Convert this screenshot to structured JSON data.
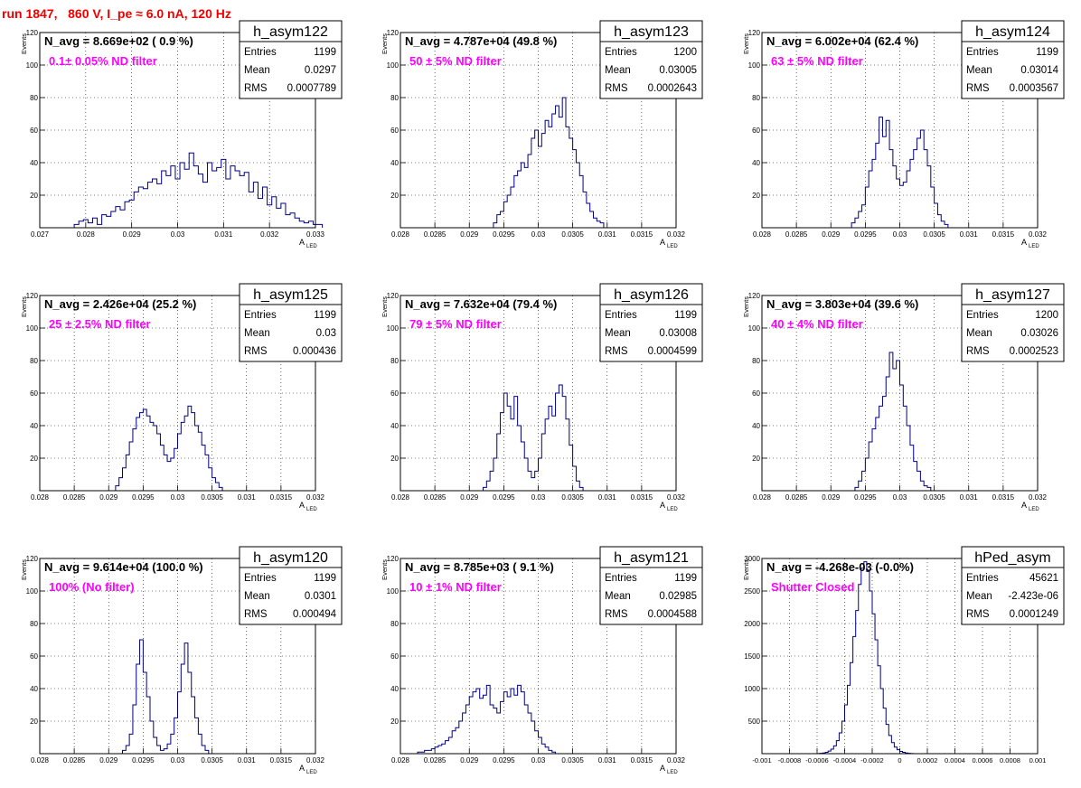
{
  "run_title": "run 1847,   860 V, I_pe ≈ 6.0 nA, 120 Hz",
  "chart_data": [
    {
      "type": "histogram",
      "name": "h_asym122",
      "ylabel": "Events",
      "xlabel_main": "A",
      "xlabel_sub": "LED",
      "xlim": [
        0.027,
        0.033
      ],
      "ylim": [
        0,
        120
      ],
      "xticks": [
        0.027,
        0.028,
        0.029,
        0.03,
        0.031,
        0.032,
        0.033
      ],
      "xtick_labels": [
        "0.027",
        "0.028",
        "0.029",
        "0.03",
        "0.031",
        "0.032",
        "0.033"
      ],
      "yticks": [
        0,
        20,
        40,
        60,
        80,
        100,
        120
      ],
      "ytick_labels": [
        "",
        "20",
        "40",
        "60",
        "80",
        "100",
        "120"
      ],
      "navg_text": "N_avg = 8.669e+02 ( 0.9 %)",
      "filter_text": "0.1± 0.05% ND filter",
      "stats": {
        "entries": "1199",
        "mean": "0.0297",
        "rms": "0.0007789"
      },
      "bin_start": 0.02775,
      "bin_width": 0.0001,
      "counts": [
        2,
        4,
        5,
        3,
        6,
        2,
        8,
        7,
        10,
        13,
        11,
        16,
        17,
        22,
        25,
        24,
        28,
        30,
        27,
        35,
        32,
        38,
        30,
        40,
        36,
        46,
        38,
        33,
        28,
        40,
        35,
        37,
        42,
        30,
        38,
        35,
        32,
        34,
        22,
        28,
        18,
        25,
        14,
        19,
        12,
        15,
        8,
        9,
        6,
        4,
        3,
        4,
        2,
        2
      ]
    },
    {
      "type": "histogram",
      "name": "h_asym123",
      "ylabel": "Events",
      "xlabel_main": "A",
      "xlabel_sub": "LED",
      "xlim": [
        0.028,
        0.032
      ],
      "ylim": [
        0,
        120
      ],
      "xticks": [
        0.028,
        0.0285,
        0.029,
        0.0295,
        0.03,
        0.0305,
        0.031,
        0.0315,
        0.032
      ],
      "xtick_labels": [
        "0.028",
        "0.0285",
        "0.029",
        "0.0295",
        "0.03",
        "0.0305",
        "0.031",
        "0.0315",
        "0.032"
      ],
      "yticks": [
        0,
        20,
        40,
        60,
        80,
        100,
        120
      ],
      "ytick_labels": [
        "",
        "20",
        "40",
        "60",
        "80",
        "100",
        "120"
      ],
      "navg_text": "N_avg = 4.787e+04 (49.8 %)",
      "filter_text": "50 ± 5% ND filter",
      "stats": {
        "entries": "1200",
        "mean": "0.03005",
        "rms": "0.0002643"
      },
      "bin_start": 0.02935,
      "bin_width": 5e-05,
      "counts": [
        3,
        8,
        10,
        16,
        20,
        25,
        32,
        35,
        40,
        37,
        45,
        55,
        60,
        50,
        58,
        66,
        62,
        70,
        75,
        68,
        80,
        62,
        55,
        48,
        40,
        32,
        22,
        15,
        10,
        6,
        4,
        3
      ]
    },
    {
      "type": "histogram",
      "name": "h_asym124",
      "ylabel": "Events",
      "xlabel_main": "A",
      "xlabel_sub": "LED",
      "xlim": [
        0.028,
        0.032
      ],
      "ylim": [
        0,
        120
      ],
      "xticks": [
        0.028,
        0.0285,
        0.029,
        0.0295,
        0.03,
        0.0305,
        0.031,
        0.0315,
        0.032
      ],
      "xtick_labels": [
        "0.028",
        "0.0285",
        "0.029",
        "0.0295",
        "0.03",
        "0.0305",
        "0.031",
        "0.0315",
        "0.032"
      ],
      "yticks": [
        0,
        20,
        40,
        60,
        80,
        100,
        120
      ],
      "ytick_labels": [
        "",
        "20",
        "40",
        "60",
        "80",
        "100",
        "120"
      ],
      "navg_text": "N_avg = 6.002e+04 (62.4 %)",
      "filter_text": "63 ± 5% ND filter",
      "stats": {
        "entries": "1199",
        "mean": "0.03014",
        "rms": "0.0003567"
      },
      "bin_start": 0.0293,
      "bin_width": 5e-05,
      "counts": [
        3,
        6,
        10,
        14,
        25,
        35,
        42,
        52,
        68,
        56,
        66,
        48,
        38,
        30,
        26,
        28,
        35,
        42,
        48,
        55,
        60,
        48,
        38,
        25,
        15,
        8,
        4,
        2
      ]
    },
    {
      "type": "histogram",
      "name": "h_asym125",
      "ylabel": "Events",
      "xlabel_main": "A",
      "xlabel_sub": "LED",
      "xlim": [
        0.028,
        0.032
      ],
      "ylim": [
        0,
        120
      ],
      "xticks": [
        0.028,
        0.0285,
        0.029,
        0.0295,
        0.03,
        0.0305,
        0.031,
        0.0315,
        0.032
      ],
      "xtick_labels": [
        "0.028",
        "0.0285",
        "0.029",
        "0.0295",
        "0.03",
        "0.0305",
        "0.031",
        "0.0315",
        "0.032"
      ],
      "yticks": [
        0,
        20,
        40,
        60,
        80,
        100,
        120
      ],
      "ytick_labels": [
        "",
        "20",
        "40",
        "60",
        "80",
        "100",
        "120"
      ],
      "navg_text": "N_avg = 2.426e+04 (25.2 %)",
      "filter_text": "25 ± 2.5% ND filter",
      "stats": {
        "entries": "1199",
        "mean": "0.03",
        "rms": "0.000436"
      },
      "bin_start": 0.0291,
      "bin_width": 5e-05,
      "counts": [
        3,
        8,
        14,
        22,
        30,
        38,
        45,
        48,
        50,
        46,
        42,
        40,
        35,
        28,
        22,
        18,
        20,
        26,
        35,
        42,
        46,
        52,
        48,
        40,
        36,
        28,
        22,
        14,
        8,
        5,
        2
      ]
    },
    {
      "type": "histogram",
      "name": "h_asym126",
      "ylabel": "Events",
      "xlabel_main": "A",
      "xlabel_sub": "LED",
      "xlim": [
        0.028,
        0.032
      ],
      "ylim": [
        0,
        120
      ],
      "xticks": [
        0.028,
        0.0285,
        0.029,
        0.0295,
        0.03,
        0.0305,
        0.031,
        0.0315,
        0.032
      ],
      "xtick_labels": [
        "0.028",
        "0.0285",
        "0.029",
        "0.0295",
        "0.03",
        "0.0305",
        "0.031",
        "0.0315",
        "0.032"
      ],
      "yticks": [
        0,
        20,
        40,
        60,
        80,
        100,
        120
      ],
      "ytick_labels": [
        "",
        "20",
        "40",
        "60",
        "80",
        "100",
        "120"
      ],
      "navg_text": "N_avg = 7.632e+04 (79.4 %)",
      "filter_text": "79 ± 5% ND filter",
      "stats": {
        "entries": "1199",
        "mean": "0.03008",
        "rms": "0.0004599"
      },
      "bin_start": 0.0292,
      "bin_width": 5e-05,
      "counts": [
        2,
        6,
        12,
        20,
        35,
        48,
        60,
        52,
        44,
        58,
        40,
        30,
        20,
        12,
        8,
        12,
        20,
        35,
        44,
        52,
        46,
        60,
        65,
        58,
        44,
        28,
        15,
        6,
        2
      ]
    },
    {
      "type": "histogram",
      "name": "h_asym127",
      "ylabel": "Events",
      "xlabel_main": "A",
      "xlabel_sub": "LED",
      "xlim": [
        0.028,
        0.032
      ],
      "ylim": [
        0,
        120
      ],
      "xticks": [
        0.028,
        0.0285,
        0.029,
        0.0295,
        0.03,
        0.0305,
        0.031,
        0.0315,
        0.032
      ],
      "xtick_labels": [
        "0.028",
        "0.0285",
        "0.029",
        "0.0295",
        "0.03",
        "0.0305",
        "0.031",
        "0.0315",
        "0.032"
      ],
      "yticks": [
        0,
        20,
        40,
        60,
        80,
        100,
        120
      ],
      "ytick_labels": [
        "",
        "20",
        "40",
        "60",
        "80",
        "100",
        "120"
      ],
      "navg_text": "N_avg = 3.803e+04 (39.6 %)",
      "filter_text": "40 ± 4% ND filter",
      "stats": {
        "entries": "1200",
        "mean": "0.03026",
        "rms": "0.0002523"
      },
      "bin_start": 0.02935,
      "bin_width": 5e-05,
      "counts": [
        2,
        6,
        12,
        20,
        30,
        38,
        45,
        52,
        58,
        70,
        85,
        75,
        80,
        65,
        52,
        40,
        28,
        18,
        12,
        6,
        3,
        2
      ]
    },
    {
      "type": "histogram",
      "name": "h_asym120",
      "ylabel": "Events",
      "xlabel_main": "A",
      "xlabel_sub": "LED",
      "xlim": [
        0.028,
        0.032
      ],
      "ylim": [
        0,
        120
      ],
      "xticks": [
        0.028,
        0.0285,
        0.029,
        0.0295,
        0.03,
        0.0305,
        0.031,
        0.0315,
        0.032
      ],
      "xtick_labels": [
        "0.028",
        "0.0285",
        "0.029",
        "0.0295",
        "0.03",
        "0.0305",
        "0.031",
        "0.0315",
        "0.032"
      ],
      "yticks": [
        0,
        20,
        40,
        60,
        80,
        100,
        120
      ],
      "ytick_labels": [
        "",
        "20",
        "40",
        "60",
        "80",
        "100",
        "120"
      ],
      "navg_text": "N_avg = 9.614e+04 (100.0 %)",
      "filter_text": "100% (No filter)",
      "stats": {
        "entries": "1199",
        "mean": "0.0301",
        "rms": "0.000494"
      },
      "bin_start": 0.0292,
      "bin_width": 5e-05,
      "counts": [
        2,
        5,
        12,
        30,
        55,
        70,
        50,
        35,
        20,
        10,
        5,
        2,
        3,
        6,
        12,
        22,
        38,
        55,
        68,
        50,
        35,
        22,
        12,
        5,
        2
      ]
    },
    {
      "type": "histogram",
      "name": "h_asym121",
      "ylabel": "Events",
      "xlabel_main": "A",
      "xlabel_sub": "LED",
      "xlim": [
        0.028,
        0.032
      ],
      "ylim": [
        0,
        120
      ],
      "xticks": [
        0.028,
        0.0285,
        0.029,
        0.0295,
        0.03,
        0.0305,
        0.031,
        0.0315,
        0.032
      ],
      "xtick_labels": [
        "0.028",
        "0.0285",
        "0.029",
        "0.0295",
        "0.03",
        "0.0305",
        "0.031",
        "0.0315",
        "0.032"
      ],
      "yticks": [
        0,
        20,
        40,
        60,
        80,
        100,
        120
      ],
      "ytick_labels": [
        "",
        "20",
        "40",
        "60",
        "80",
        "100",
        "120"
      ],
      "navg_text": "N_avg = 8.785e+03 ( 9.1 %)",
      "filter_text": "10 ± 1% ND filter",
      "stats": {
        "entries": "1199",
        "mean": "0.02985",
        "rms": "0.0004588"
      },
      "bin_start": 0.02825,
      "bin_width": 5e-05,
      "counts": [
        1,
        1,
        2,
        2,
        3,
        4,
        5,
        6,
        8,
        10,
        14,
        16,
        20,
        25,
        30,
        35,
        38,
        40,
        34,
        36,
        42,
        30,
        28,
        25,
        32,
        38,
        35,
        40,
        36,
        42,
        38,
        30,
        25,
        20,
        14,
        10,
        6,
        4,
        2,
        1
      ]
    },
    {
      "type": "histogram",
      "name": "hPed_asym",
      "ylabel": "Events",
      "xlabel_main": "",
      "xlabel_sub": "",
      "xlim": [
        -0.001,
        0.001
      ],
      "ylim": [
        0,
        3000
      ],
      "xticks": [
        -0.001,
        -0.0008,
        -0.0006,
        -0.0004,
        -0.0002,
        0,
        0.0002,
        0.0004,
        0.0006,
        0.0008,
        0.001
      ],
      "xtick_labels": [
        "-0.001",
        "-0.0008",
        "-0.0006",
        "-0.0004",
        "-0.0002",
        "0",
        "0.0002",
        "0.0004",
        "0.0006",
        "0.0008",
        "0.001"
      ],
      "yticks": [
        0,
        500,
        1000,
        1500,
        2000,
        2500,
        3000
      ],
      "ytick_labels": [
        "",
        "500",
        "1000",
        "1500",
        "2000",
        "2500",
        "3000"
      ],
      "navg_text": "N_avg = -4.268e-03 (-0.0%)",
      "filter_text": "Shutter Closed",
      "stats": {
        "entries": "45621",
        "mean": "-2.423e-06",
        "rms": "0.0001249"
      },
      "bin_start": -0.0006,
      "bin_width": 2e-05,
      "counts": [
        2,
        5,
        10,
        20,
        40,
        70,
        120,
        200,
        320,
        500,
        750,
        1050,
        1400,
        1800,
        2200,
        2600,
        2850,
        2950,
        2800,
        2500,
        2150,
        1750,
        1350,
        1000,
        700,
        450,
        280,
        170,
        100,
        60,
        35,
        20,
        10,
        5,
        2
      ]
    }
  ]
}
